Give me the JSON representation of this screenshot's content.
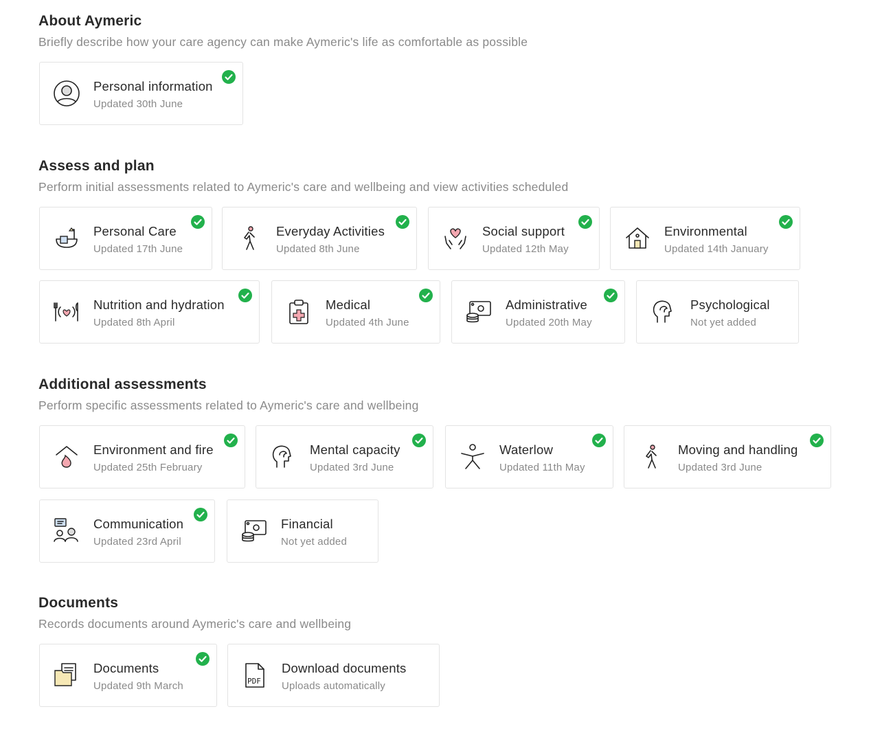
{
  "sections": [
    {
      "title": "About Aymeric",
      "subtitle": "Briefly describe how your care agency can make Aymeric's life as comfortable as possible",
      "cards": [
        {
          "title": "Personal information",
          "status": "Updated 30th June",
          "done": true,
          "icon": "user-circle-icon"
        }
      ]
    },
    {
      "title": "Assess and plan",
      "subtitle": "Perform initial assessments related to Aymeric's care and wellbeing and view activities scheduled",
      "cards": [
        {
          "title": "Personal Care",
          "status": "Updated 17th June",
          "done": true,
          "icon": "bath-icon"
        },
        {
          "title": "Everyday Activities",
          "status": "Updated 8th June",
          "done": true,
          "icon": "walking-person-icon"
        },
        {
          "title": "Social support",
          "status": "Updated 12th May",
          "done": true,
          "icon": "hands-heart-icon"
        },
        {
          "title": "Environmental",
          "status": "Updated 14th January",
          "done": true,
          "icon": "house-icon"
        },
        {
          "title": "Nutrition and hydration",
          "status": "Updated 8th April",
          "done": true,
          "icon": "plate-heart-icon"
        },
        {
          "title": "Medical",
          "status": "Updated 4th June",
          "done": true,
          "icon": "clipboard-cross-icon"
        },
        {
          "title": "Administrative",
          "status": "Updated 20th May",
          "done": true,
          "icon": "money-coins-icon"
        },
        {
          "title": "Psychological",
          "status": "Not yet added",
          "done": false,
          "icon": "head-icon"
        }
      ]
    },
    {
      "title": "Additional assessments",
      "subtitle": "Perform specific assessments related to Aymeric's care and wellbeing",
      "cards": [
        {
          "title": "Environment and fire",
          "status": "Updated 25th February",
          "done": true,
          "icon": "fire-house-icon"
        },
        {
          "title": "Mental capacity",
          "status": "Updated 3rd June",
          "done": true,
          "icon": "head-icon"
        },
        {
          "title": "Waterlow",
          "status": "Updated 11th May",
          "done": true,
          "icon": "person-star-icon"
        },
        {
          "title": "Moving and handling",
          "status": "Updated 3rd June",
          "done": true,
          "icon": "walking-person-icon"
        },
        {
          "title": "Communication",
          "status": "Updated 23rd April",
          "done": true,
          "icon": "people-chat-icon"
        },
        {
          "title": "Financial",
          "status": "Not yet added",
          "done": false,
          "icon": "money-coins-icon"
        }
      ]
    },
    {
      "title": "Documents",
      "subtitle": "Records documents around Aymeric's care and wellbeing",
      "cards": [
        {
          "title": "Documents",
          "status": "Updated 9th March",
          "done": true,
          "icon": "folder-document-icon"
        },
        {
          "title": "Download documents",
          "status": "Uploads automatically",
          "done": false,
          "icon": "pdf-file-icon"
        }
      ]
    }
  ],
  "colors": {
    "check": "#22b14c",
    "accent_pink": "#f4a7b0",
    "accent_yellow": "#f6e8b5",
    "accent_blue": "#cfe0f3"
  }
}
